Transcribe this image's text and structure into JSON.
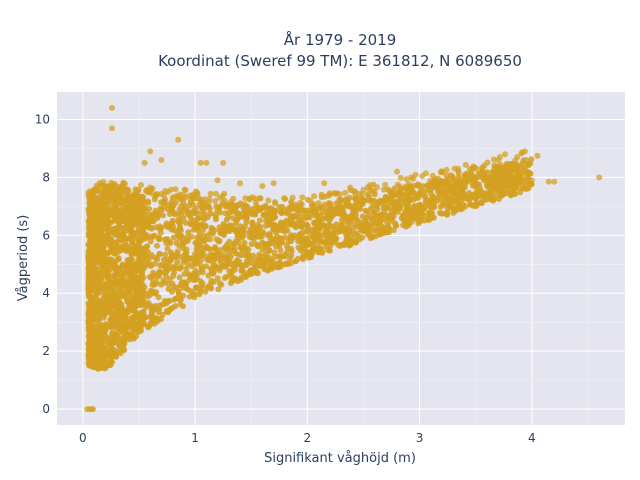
{
  "chart_data": {
    "type": "scatter",
    "title_lines": [
      "År 1979 - 2019",
      "Koordinat (Sweref 99 TM): E 361812, N 6089650"
    ],
    "xlabel": "Signifikant våghöjd (m)",
    "ylabel": "Vågperiod (s)",
    "xlim": [
      -0.23,
      4.83
    ],
    "ylim": [
      -0.55,
      10.95
    ],
    "x_ticks": [
      0,
      1,
      2,
      3,
      4
    ],
    "y_ticks": [
      0,
      2,
      4,
      6,
      8,
      10
    ],
    "x_tick_labels": [
      "0",
      "1",
      "2",
      "3",
      "4"
    ],
    "y_tick_labels": [
      "0",
      "2",
      "4",
      "6",
      "8",
      "10"
    ],
    "grid": true,
    "legend": "none",
    "marker_color": "#D4A020",
    "plot_background": "#E5E5EF",
    "series": [
      {
        "points_description": "dense point cloud",
        "band": [
          {
            "x": 0.05,
            "y_low": 1.5,
            "y_high": 7.2
          },
          {
            "x": 0.2,
            "y_low": 1.3,
            "y_high": 7.6
          },
          {
            "x": 0.5,
            "y_low": 2.6,
            "y_high": 7.4
          },
          {
            "x": 1.0,
            "y_low": 3.8,
            "y_high": 7.2
          },
          {
            "x": 1.5,
            "y_low": 4.6,
            "y_high": 7.0
          },
          {
            "x": 2.0,
            "y_low": 5.2,
            "y_high": 7.0
          },
          {
            "x": 2.5,
            "y_low": 5.8,
            "y_high": 7.4
          },
          {
            "x": 3.0,
            "y_low": 6.4,
            "y_high": 7.8
          },
          {
            "x": 3.5,
            "y_low": 7.0,
            "y_high": 8.2
          },
          {
            "x": 4.0,
            "y_low": 7.6,
            "y_high": 8.7
          }
        ],
        "outliers": [
          {
            "x": 0.26,
            "y": 10.4
          },
          {
            "x": 0.26,
            "y": 9.7
          },
          {
            "x": 0.6,
            "y": 8.9
          },
          {
            "x": 0.85,
            "y": 9.3
          },
          {
            "x": 0.55,
            "y": 8.5
          },
          {
            "x": 1.05,
            "y": 8.5
          },
          {
            "x": 1.1,
            "y": 8.5
          },
          {
            "x": 1.25,
            "y": 8.5
          },
          {
            "x": 0.7,
            "y": 8.6
          },
          {
            "x": 1.2,
            "y": 7.9
          },
          {
            "x": 1.4,
            "y": 7.8
          },
          {
            "x": 1.6,
            "y": 7.7
          },
          {
            "x": 1.7,
            "y": 7.8
          },
          {
            "x": 2.15,
            "y": 7.8
          },
          {
            "x": 2.8,
            "y": 8.2
          },
          {
            "x": 3.7,
            "y": 8.6
          },
          {
            "x": 3.95,
            "y": 8.6
          },
          {
            "x": 4.05,
            "y": 8.75
          },
          {
            "x": 3.85,
            "y": 8.0
          },
          {
            "x": 3.9,
            "y": 7.9
          },
          {
            "x": 4.0,
            "y": 7.9
          },
          {
            "x": 4.15,
            "y": 7.85
          },
          {
            "x": 4.2,
            "y": 7.85
          },
          {
            "x": 4.6,
            "y": 8.0
          },
          {
            "x": 0.04,
            "y": 0.0
          },
          {
            "x": 0.06,
            "y": 0.0
          },
          {
            "x": 0.08,
            "y": 0.0
          },
          {
            "x": 0.09,
            "y": 0.0
          }
        ]
      }
    ]
  }
}
